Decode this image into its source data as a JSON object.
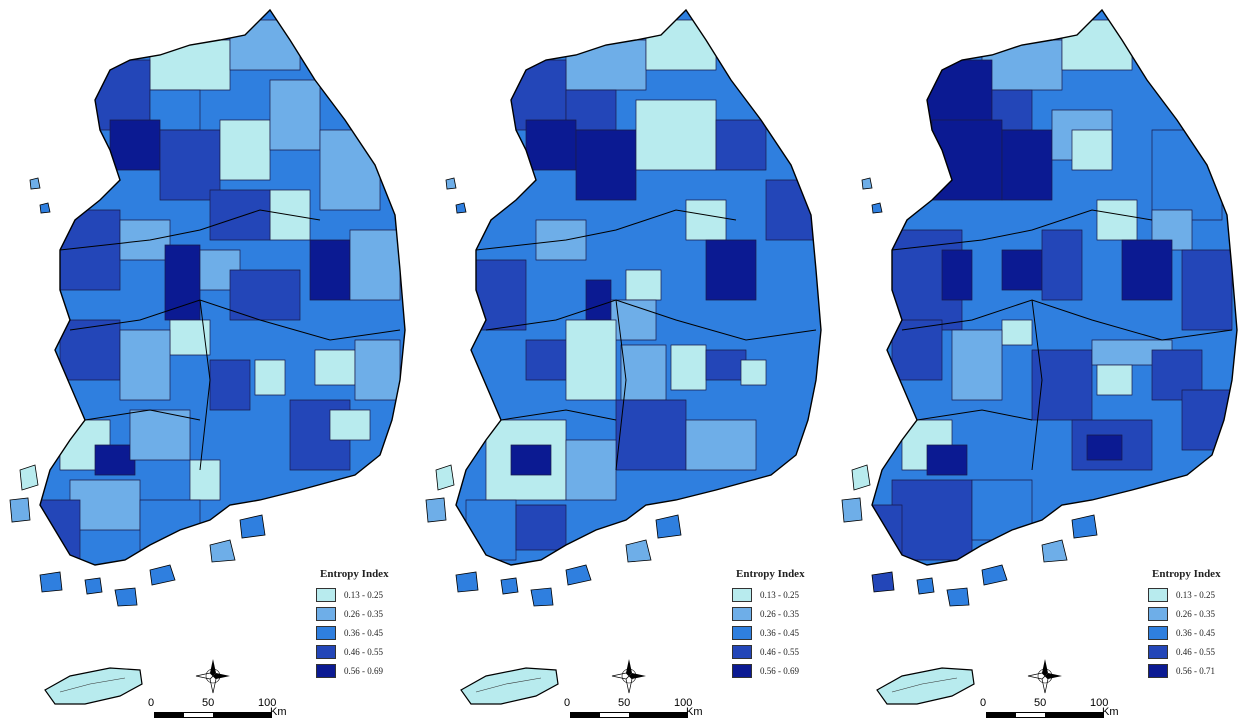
{
  "panels": [
    {
      "legend": {
        "title": "Entropy Index",
        "classes": [
          {
            "label": "0.13 - 0.25",
            "color": "#b8ebee"
          },
          {
            "label": "0.26 - 0.35",
            "color": "#6eaee8"
          },
          {
            "label": "0.36 - 0.45",
            "color": "#2f7fdf"
          },
          {
            "label": "0.46 - 0.55",
            "color": "#2346b8"
          },
          {
            "label": "0.56 - 0.69",
            "color": "#0b1a92"
          }
        ]
      },
      "scale": {
        "ticks": [
          "0",
          "50",
          "100"
        ],
        "unit": "Km"
      }
    },
    {
      "legend": {
        "title": "Entropy Index",
        "classes": [
          {
            "label": "0.13 - 0.25",
            "color": "#b8ebee"
          },
          {
            "label": "0.26 - 0.35",
            "color": "#6eaee8"
          },
          {
            "label": "0.36 - 0.45",
            "color": "#2f7fdf"
          },
          {
            "label": "0.46 - 0.55",
            "color": "#2346b8"
          },
          {
            "label": "0.56 - 0.69",
            "color": "#0b1a92"
          }
        ]
      },
      "scale": {
        "ticks": [
          "0",
          "50",
          "100"
        ],
        "unit": "Km"
      }
    },
    {
      "legend": {
        "title": "Entropy Index",
        "classes": [
          {
            "label": "0.13 - 0.25",
            "color": "#b8ebee"
          },
          {
            "label": "0.26 - 0.35",
            "color": "#6eaee8"
          },
          {
            "label": "0.36 - 0.45",
            "color": "#2f7fdf"
          },
          {
            "label": "0.46 - 0.55",
            "color": "#2346b8"
          },
          {
            "label": "0.56 - 0.71",
            "color": "#0b1a92"
          }
        ]
      },
      "scale": {
        "ticks": [
          "0",
          "50",
          "100"
        ],
        "unit": "Km"
      }
    }
  ]
}
